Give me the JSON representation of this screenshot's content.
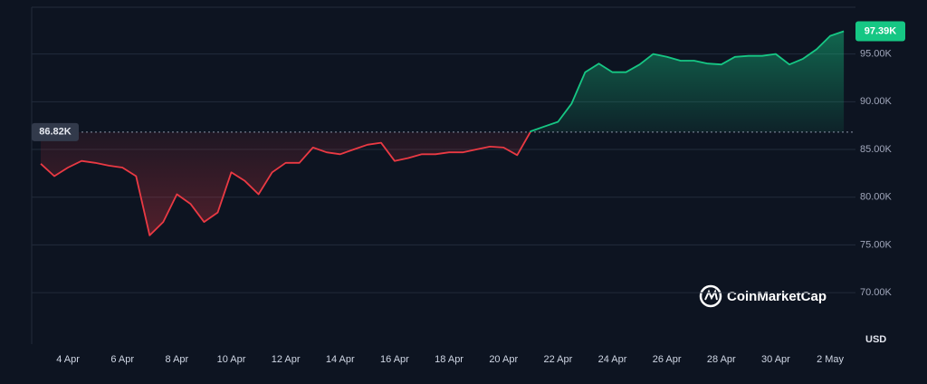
{
  "chart_data": {
    "type": "line",
    "categories": [
      null,
      null,
      "4 Apr",
      null,
      null,
      null,
      "6 Apr",
      null,
      null,
      null,
      "8 Apr",
      null,
      null,
      null,
      "10 Apr",
      null,
      null,
      null,
      "12 Apr",
      null,
      null,
      null,
      "14 Apr",
      null,
      null,
      null,
      "16 Apr",
      null,
      null,
      null,
      "18 Apr",
      null,
      null,
      null,
      "20 Apr",
      null,
      null,
      null,
      "22 Apr",
      null,
      null,
      null,
      "24 Apr",
      null,
      null,
      null,
      "26 Apr",
      null,
      null,
      null,
      "28 Apr",
      null,
      null,
      null,
      "30 Apr",
      null,
      null,
      null,
      "2 May",
      null
    ],
    "values": [
      83500,
      82200,
      83100,
      83800,
      83600,
      83300,
      83100,
      82200,
      76000,
      77400,
      80300,
      79300,
      77400,
      78400,
      82600,
      81700,
      80300,
      82600,
      83600,
      83600,
      85200,
      84700,
      84500,
      85000,
      85500,
      85700,
      83800,
      84100,
      84500,
      84500,
      84700,
      84700,
      85000,
      85300,
      85200,
      84400,
      86900,
      87400,
      87900,
      89800,
      93100,
      94000,
      93100,
      93100,
      93900,
      95000,
      94700,
      94300,
      94300,
      94000,
      93900,
      94700,
      94800,
      94800,
      95000,
      93900,
      94500,
      95500,
      96900,
      97390
    ],
    "value_labels": [
      null,
      null,
      null,
      null,
      null,
      null,
      null,
      null,
      null,
      null,
      null,
      null,
      null,
      null,
      null,
      null,
      null,
      null,
      null,
      null,
      null,
      null,
      null,
      null,
      null,
      null,
      null,
      null,
      null,
      null,
      null,
      null,
      null,
      null,
      null,
      null,
      null,
      null,
      null,
      null,
      null,
      null,
      null,
      null,
      null,
      null,
      null,
      null,
      null,
      null,
      null,
      null,
      null,
      null,
      null,
      null,
      null,
      null,
      null,
      "97.39K"
    ],
    "color_above": "#16c784",
    "color_below": "#ea3943",
    "reference": {
      "value": 86820,
      "label": "86.82K"
    },
    "ylim": [
      64600,
      99900
    ],
    "yticks": [
      {
        "value": 70000,
        "label": "70.00K"
      },
      {
        "value": 75000,
        "label": "75.00K"
      },
      {
        "value": 80000,
        "label": "80.00K"
      },
      {
        "value": 85000,
        "label": "85.00K"
      },
      {
        "value": 90000,
        "label": "90.00K"
      },
      {
        "value": 95000,
        "label": "95.00K"
      }
    ],
    "grid": true,
    "y_unit_label": "USD",
    "watermark": "CoinMarketCap"
  }
}
